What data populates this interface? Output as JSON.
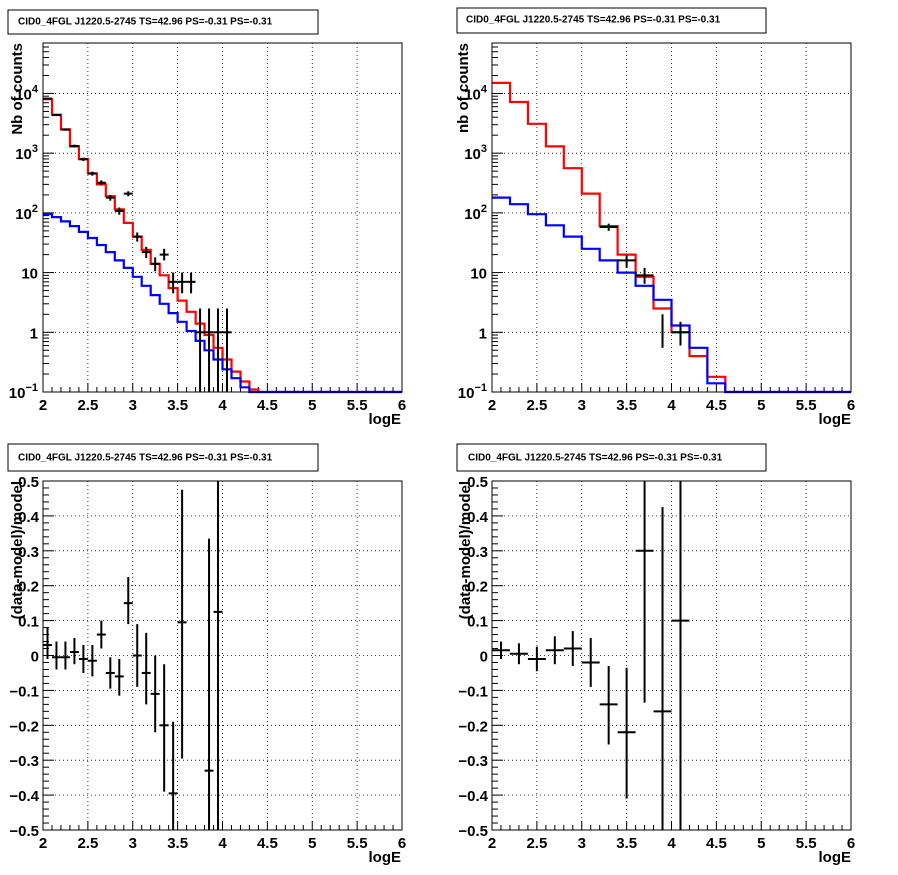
{
  "chart_data": [
    {
      "type": "step-histogram",
      "title": "CID0_4FGL J1220.5-2745 TS=42.96 PS=-0.31 PS=-0.31",
      "xlabel": "logE",
      "ylabel": "Nb of counts",
      "xlim": [
        2,
        6
      ],
      "ylim": [
        0.1,
        70000
      ],
      "log_y": true,
      "grid": true,
      "x_ticks": [
        "2",
        "2.5",
        "3",
        "3.5",
        "4",
        "4.5",
        "5",
        "5.5",
        "6"
      ],
      "y_ticks": [
        {
          "v": 0.1,
          "mant": "10",
          "exp": "−1"
        },
        {
          "v": 1,
          "mant": "1",
          "exp": ""
        },
        {
          "v": 10,
          "mant": "10",
          "exp": ""
        },
        {
          "v": 100,
          "mant": "10",
          "exp": "2"
        },
        {
          "v": 1000,
          "mant": "10",
          "exp": "3"
        },
        {
          "v": 10000,
          "mant": "10",
          "exp": "4"
        }
      ],
      "bin_edges": [
        2.0,
        2.1,
        2.2,
        2.3,
        2.4,
        2.5,
        2.6,
        2.7,
        2.8,
        2.9,
        3.0,
        3.1,
        3.2,
        3.3,
        3.4,
        3.5,
        3.6,
        3.7,
        3.8,
        3.9,
        4.0,
        4.1,
        4.2,
        4.3,
        4.4,
        4.5,
        4.6,
        4.7,
        4.8,
        4.9,
        5.0,
        5.1,
        5.2,
        5.3,
        5.4,
        5.5,
        5.6,
        5.7,
        5.8,
        5.9,
        6.0
      ],
      "series": [
        {
          "name": "",
          "style": "step",
          "color": "#ff0000",
          "values": [
            8000,
            4400,
            2500,
            1300,
            800,
            460,
            300,
            190,
            115,
            68,
            40,
            24,
            14,
            9,
            5.5,
            3.4,
            2.2,
            1.4,
            0.9,
            0.55,
            0.35,
            0.22,
            0.15,
            0.11,
            0.1,
            0.1,
            0.1,
            0.1,
            0.1,
            0.1,
            0.1,
            0.1,
            0.1,
            0.1,
            0.1,
            0.1,
            0.1,
            0.1,
            0.1,
            0.1
          ]
        },
        {
          "name": "",
          "style": "step",
          "color": "#0000ff",
          "values": [
            95,
            85,
            72,
            60,
            48,
            38,
            29,
            22,
            16,
            12,
            8.5,
            6,
            4.2,
            3,
            2.1,
            1.5,
            1.05,
            0.72,
            0.5,
            0.35,
            0.24,
            0.17,
            0.12,
            0.1,
            0.1,
            0.1,
            0.1,
            0.1,
            0.1,
            0.1,
            0.1,
            0.1,
            0.1,
            0.1,
            0.1,
            0.1,
            0.1,
            0.1,
            0.1,
            0.1
          ]
        },
        {
          "name": "",
          "style": "errorbar",
          "color": "#000000",
          "points": [
            {
              "x": 2.05,
              "y": 8200,
              "xerr": 0.05,
              "ylo": 8020,
              "yhi": 8380
            },
            {
              "x": 2.15,
              "y": 4350,
              "xerr": 0.05,
              "ylo": 4220,
              "yhi": 4480
            },
            {
              "x": 2.25,
              "y": 2480,
              "xerr": 0.05,
              "ylo": 2380,
              "yhi": 2580
            },
            {
              "x": 2.35,
              "y": 1320,
              "xerr": 0.05,
              "ylo": 1250,
              "yhi": 1390
            },
            {
              "x": 2.45,
              "y": 790,
              "xerr": 0.05,
              "ylo": 740,
              "yhi": 840
            },
            {
              "x": 2.55,
              "y": 455,
              "xerr": 0.05,
              "ylo": 420,
              "yhi": 490
            },
            {
              "x": 2.65,
              "y": 320,
              "xerr": 0.05,
              "ylo": 290,
              "yhi": 350
            },
            {
              "x": 2.75,
              "y": 180,
              "xerr": 0.05,
              "ylo": 160,
              "yhi": 200
            },
            {
              "x": 2.85,
              "y": 108,
              "xerr": 0.05,
              "ylo": 93,
              "yhi": 123
            },
            {
              "x": 2.95,
              "y": 210,
              "xerr": 0.05,
              "ylo": 190,
              "yhi": 230
            },
            {
              "x": 3.05,
              "y": 40,
              "xerr": 0.05,
              "ylo": 33,
              "yhi": 47
            },
            {
              "x": 3.15,
              "y": 22,
              "xerr": 0.05,
              "ylo": 17.5,
              "yhi": 27
            },
            {
              "x": 3.25,
              "y": 14,
              "xerr": 0.05,
              "ylo": 10.5,
              "yhi": 18
            },
            {
              "x": 3.35,
              "y": 20,
              "xerr": 0.05,
              "ylo": 16,
              "yhi": 25
            },
            {
              "x": 3.45,
              "y": 7,
              "xerr": 0.05,
              "ylo": 4.5,
              "yhi": 10
            },
            {
              "x": 3.55,
              "y": 7,
              "xerr": 0.05,
              "ylo": 4.5,
              "yhi": 10
            },
            {
              "x": 3.65,
              "y": 7,
              "xerr": 0.05,
              "ylo": 4.5,
              "yhi": 10
            },
            {
              "x": 3.75,
              "y": 1,
              "xerr": 0.05,
              "ylo": 0.1,
              "yhi": 2.5
            },
            {
              "x": 3.85,
              "y": 1,
              "xerr": 0.05,
              "ylo": 0.1,
              "yhi": 2.5
            },
            {
              "x": 3.95,
              "y": 1,
              "xerr": 0.05,
              "ylo": 0.1,
              "yhi": 2.5
            },
            {
              "x": 4.05,
              "y": 1,
              "xerr": 0.05,
              "ylo": 0.1,
              "yhi": 2.5
            }
          ]
        }
      ]
    },
    {
      "type": "step-histogram",
      "title": "CID0_4FGL J1220.5-2745 TS=42.96 PS=-0.31 PS=-0.31",
      "xlabel": "logE",
      "ylabel": "nb of counts",
      "xlim": [
        2,
        6
      ],
      "ylim": [
        0.1,
        70000
      ],
      "log_y": true,
      "grid": true,
      "x_ticks": [
        "2",
        "2.5",
        "3",
        "3.5",
        "4",
        "4.5",
        "5",
        "5.5",
        "6"
      ],
      "y_ticks": [
        {
          "v": 0.1,
          "mant": "10",
          "exp": "−1"
        },
        {
          "v": 1,
          "mant": "1",
          "exp": ""
        },
        {
          "v": 10,
          "mant": "10",
          "exp": ""
        },
        {
          "v": 100,
          "mant": "10",
          "exp": "2"
        },
        {
          "v": 1000,
          "mant": "10",
          "exp": "3"
        },
        {
          "v": 10000,
          "mant": "10",
          "exp": "4"
        }
      ],
      "bin_edges": [
        2.0,
        2.2,
        2.4,
        2.6,
        2.8,
        3.0,
        3.2,
        3.4,
        3.6,
        3.8,
        4.0,
        4.2,
        4.4,
        4.6,
        4.8,
        5.0,
        5.2,
        5.4,
        5.6,
        5.8,
        6.0
      ],
      "series": [
        {
          "name": "",
          "style": "step",
          "color": "#ff0000",
          "values": [
            15000,
            7200,
            3100,
            1300,
            560,
            210,
            60,
            20,
            8.5,
            2.5,
            1.0,
            0.4,
            0.18,
            0.1,
            0.1,
            0.1,
            0.1,
            0.1,
            0.1,
            0.1
          ]
        },
        {
          "name": "",
          "style": "step",
          "color": "#0000ff",
          "values": [
            180,
            140,
            95,
            62,
            40,
            25,
            16,
            10,
            6,
            3.5,
            1.3,
            0.55,
            0.14,
            0.1,
            0.1,
            0.1,
            0.1,
            0.1,
            0.1,
            0.1
          ]
        },
        {
          "name": "",
          "style": "errorbar",
          "color": "#000000",
          "points": [
            {
              "x": 3.3,
              "y": 58,
              "xerr": 0.1,
              "ylo": 50,
              "yhi": 66
            },
            {
              "x": 3.5,
              "y": 16,
              "xerr": 0.1,
              "ylo": 12,
              "yhi": 20
            },
            {
              "x": 3.7,
              "y": 9,
              "xerr": 0.1,
              "ylo": 6.5,
              "yhi": 12
            },
            {
              "x": 4.1,
              "y": 1,
              "xerr": 0.1,
              "ylo": 0.6,
              "yhi": 1.5
            },
            {
              "x": 3.9,
              "y": 1.2,
              "xerr": 0.0,
              "ylo": 0.55,
              "yhi": 2.0
            }
          ]
        }
      ]
    },
    {
      "type": "scatter-errorbar",
      "title": "CID0_4FGL J1220.5-2745 TS=42.96 PS=-0.31 PS=-0.31",
      "xlabel": "logE",
      "ylabel": "(data-model)/model",
      "xlim": [
        2,
        6
      ],
      "ylim": [
        -0.5,
        0.5
      ],
      "log_y": false,
      "grid": true,
      "x_ticks": [
        "2",
        "2.5",
        "3",
        "3.5",
        "4",
        "4.5",
        "5",
        "5.5",
        "6"
      ],
      "y_ticks": [
        "−0.5",
        "−0.4",
        "−0.3",
        "−0.2",
        "−0.1",
        "0",
        "0.1",
        "0.2",
        "0.3",
        "0.4",
        "0.5"
      ],
      "series": [
        {
          "name": "",
          "style": "errorbar",
          "color": "#000000",
          "points": [
            {
              "x": 2.05,
              "y": 0.03,
              "xerr": 0.05,
              "ylo": -0.01,
              "yhi": 0.08
            },
            {
              "x": 2.15,
              "y": -0.005,
              "xerr": 0.05,
              "ylo": -0.04,
              "yhi": 0.04
            },
            {
              "x": 2.25,
              "y": -0.005,
              "xerr": 0.05,
              "ylo": -0.04,
              "yhi": 0.04
            },
            {
              "x": 2.35,
              "y": 0.01,
              "xerr": 0.05,
              "ylo": -0.025,
              "yhi": 0.05
            },
            {
              "x": 2.45,
              "y": -0.01,
              "xerr": 0.05,
              "ylo": -0.05,
              "yhi": 0.03
            },
            {
              "x": 2.55,
              "y": -0.015,
              "xerr": 0.05,
              "ylo": -0.06,
              "yhi": 0.03
            },
            {
              "x": 2.65,
              "y": 0.06,
              "xerr": 0.05,
              "ylo": 0.02,
              "yhi": 0.1
            },
            {
              "x": 2.75,
              "y": -0.05,
              "xerr": 0.05,
              "ylo": -0.095,
              "yhi": -0.005
            },
            {
              "x": 2.85,
              "y": -0.06,
              "xerr": 0.05,
              "ylo": -0.115,
              "yhi": -0.01
            },
            {
              "x": 2.95,
              "y": 0.15,
              "xerr": 0.05,
              "ylo": 0.09,
              "yhi": 0.225
            },
            {
              "x": 3.05,
              "y": 0.0,
              "xerr": 0.05,
              "ylo": -0.09,
              "yhi": 0.09
            },
            {
              "x": 3.15,
              "y": -0.05,
              "xerr": 0.05,
              "ylo": -0.14,
              "yhi": 0.065
            },
            {
              "x": 3.25,
              "y": -0.11,
              "xerr": 0.05,
              "ylo": -0.22,
              "yhi": 0.0
            },
            {
              "x": 3.35,
              "y": -0.2,
              "xerr": 0.05,
              "ylo": -0.39,
              "yhi": -0.025
            },
            {
              "x": 3.45,
              "y": -0.395,
              "xerr": 0.05,
              "ylo": -0.5,
              "yhi": -0.19
            },
            {
              "x": 3.55,
              "y": 0.095,
              "xerr": 0.05,
              "ylo": -0.295,
              "yhi": 0.475
            },
            {
              "x": 3.85,
              "y": -0.33,
              "xerr": 0.05,
              "ylo": -0.5,
              "yhi": 0.335
            },
            {
              "x": 3.95,
              "y": 0.125,
              "xerr": 0.05,
              "ylo": -0.5,
              "yhi": 0.5
            }
          ]
        }
      ]
    },
    {
      "type": "scatter-errorbar",
      "title": "CID0_4FGL J1220.5-2745 TS=42.96 PS=-0.31 PS=-0.31",
      "xlabel": "logE",
      "ylabel": "(data-model)/model",
      "xlim": [
        2,
        6
      ],
      "ylim": [
        -0.5,
        0.5
      ],
      "log_y": false,
      "grid": true,
      "x_ticks": [
        "2",
        "2.5",
        "3",
        "3.5",
        "4",
        "4.5",
        "5",
        "5.5",
        "6"
      ],
      "y_ticks": [
        "−0.5",
        "−0.4",
        "−0.3",
        "−0.2",
        "−0.1",
        "0",
        "0.1",
        "0.2",
        "0.3",
        "0.4",
        "0.5"
      ],
      "series": [
        {
          "name": "",
          "style": "errorbar",
          "color": "#000000",
          "points": [
            {
              "x": 2.1,
              "y": 0.015,
              "xerr": 0.1,
              "ylo": -0.01,
              "yhi": 0.04
            },
            {
              "x": 2.3,
              "y": 0.005,
              "xerr": 0.1,
              "ylo": -0.025,
              "yhi": 0.035
            },
            {
              "x": 2.5,
              "y": -0.01,
              "xerr": 0.1,
              "ylo": -0.045,
              "yhi": 0.025
            },
            {
              "x": 2.7,
              "y": 0.015,
              "xerr": 0.1,
              "ylo": -0.025,
              "yhi": 0.055
            },
            {
              "x": 2.9,
              "y": 0.02,
              "xerr": 0.1,
              "ylo": -0.03,
              "yhi": 0.07
            },
            {
              "x": 3.1,
              "y": -0.02,
              "xerr": 0.1,
              "ylo": -0.09,
              "yhi": 0.05
            },
            {
              "x": 3.3,
              "y": -0.14,
              "xerr": 0.1,
              "ylo": -0.255,
              "yhi": -0.03
            },
            {
              "x": 3.5,
              "y": -0.22,
              "xerr": 0.1,
              "ylo": -0.41,
              "yhi": -0.035
            },
            {
              "x": 3.7,
              "y": 0.3,
              "xerr": 0.1,
              "ylo": -0.135,
              "yhi": 0.5
            },
            {
              "x": 3.9,
              "y": -0.16,
              "xerr": 0.1,
              "ylo": -0.5,
              "yhi": 0.425
            },
            {
              "x": 4.1,
              "y": 0.1,
              "xerr": 0.1,
              "ylo": -0.5,
              "yhi": 0.5
            }
          ]
        }
      ]
    }
  ]
}
